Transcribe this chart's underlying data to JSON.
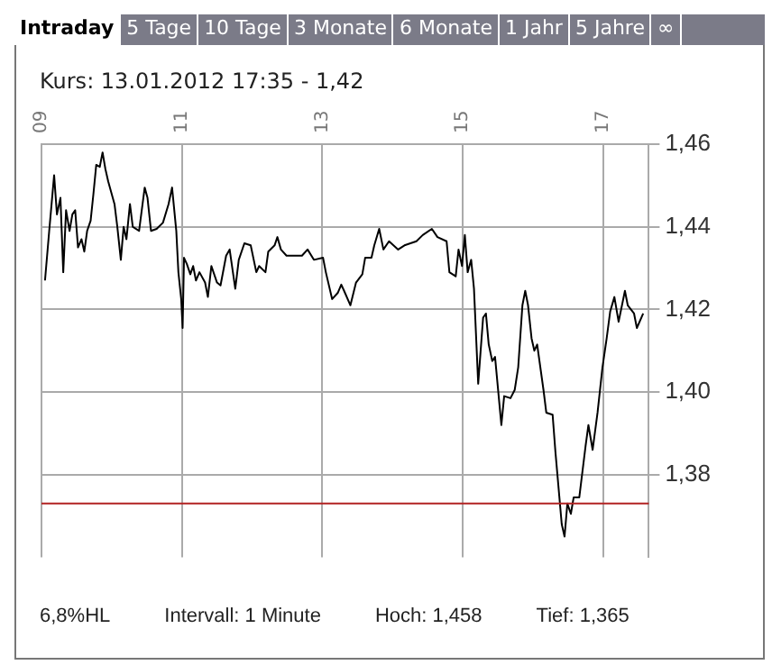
{
  "chart_data": {
    "type": "line",
    "title": "Kurs: 13.01.2012 17:35 - 1,42",
    "annotations": [
      "Intraday",
      "5 Tage",
      "10 Tage",
      "3 Monate",
      "6 Monate",
      "1 Jahr",
      "5 Jahre",
      "∞",
      "6,8%HL",
      "Intervall: 1 Minute",
      "Hoch: 1,458",
      "Tief: 1,365"
    ],
    "x": [
      9.05,
      9.11,
      9.18,
      9.22,
      9.27,
      9.31,
      9.35,
      9.4,
      9.44,
      9.48,
      9.52,
      9.57,
      9.61,
      9.65,
      9.7,
      9.74,
      9.78,
      9.83,
      9.87,
      9.91,
      9.95,
      10.04,
      10.08,
      10.13,
      10.17,
      10.21,
      10.26,
      10.3,
      10.39,
      10.47,
      10.51,
      10.56,
      10.64,
      10.73,
      10.81,
      10.86,
      10.92,
      10.95,
      10.99,
      11.01,
      11.03,
      11.07,
      11.12,
      11.16,
      11.2,
      11.25,
      11.33,
      11.37,
      11.42,
      11.5,
      11.55,
      11.63,
      11.68,
      11.76,
      11.81,
      11.89,
      11.98,
      12.06,
      12.1,
      12.19,
      12.23,
      12.32,
      12.36,
      12.41,
      12.49,
      12.58,
      12.71,
      12.79,
      12.88,
      13.01,
      13.05,
      13.14,
      13.22,
      13.27,
      13.31,
      13.4,
      13.48,
      13.57,
      13.61,
      13.7,
      13.74,
      13.81,
      13.87,
      13.95,
      14.08,
      14.17,
      14.34,
      14.43,
      14.56,
      14.64,
      14.77,
      14.81,
      14.9,
      14.94,
      14.99,
      15.03,
      15.07,
      15.12,
      15.16,
      15.22,
      15.29,
      15.33,
      15.37,
      15.42,
      15.46,
      15.55,
      15.59,
      15.68,
      15.74,
      15.79,
      15.85,
      15.89,
      15.93,
      15.98,
      16.02,
      16.06,
      16.15,
      16.19,
      16.28,
      16.32,
      16.41,
      16.45,
      16.49,
      16.54,
      16.58,
      16.66,
      16.75,
      16.79,
      16.85,
      16.92,
      16.99,
      17.05,
      17.1,
      17.16,
      17.22,
      17.31,
      17.35,
      17.44,
      17.48,
      17.57
    ],
    "series": [
      {
        "color": "#000000",
        "values": [
          1.427,
          1.439,
          1.4525,
          1.443,
          1.447,
          1.429,
          1.444,
          1.439,
          1.443,
          1.444,
          1.435,
          1.437,
          1.434,
          1.439,
          1.4415,
          1.448,
          1.455,
          1.4545,
          1.458,
          1.454,
          1.451,
          1.4455,
          1.44,
          1.432,
          1.44,
          1.437,
          1.4455,
          1.44,
          1.439,
          1.4495,
          1.447,
          1.439,
          1.4395,
          1.441,
          1.4455,
          1.4495,
          1.439,
          1.429,
          1.4225,
          1.4155,
          1.4325,
          1.431,
          1.4285,
          1.4305,
          1.427,
          1.429,
          1.4265,
          1.423,
          1.4305,
          1.4265,
          1.4258,
          1.433,
          1.4345,
          1.425,
          1.432,
          1.436,
          1.4355,
          1.429,
          1.4305,
          1.429,
          1.434,
          1.4355,
          1.4375,
          1.4345,
          1.433,
          1.433,
          1.433,
          1.4345,
          1.432,
          1.4325,
          1.429,
          1.4225,
          1.424,
          1.426,
          1.4245,
          1.421,
          1.4265,
          1.4285,
          1.4325,
          1.4325,
          1.4355,
          1.4395,
          1.4345,
          1.4365,
          1.4345,
          1.4355,
          1.4365,
          1.438,
          1.4395,
          1.4375,
          1.4365,
          1.429,
          1.428,
          1.4345,
          1.4305,
          1.438,
          1.429,
          1.432,
          1.425,
          1.402,
          1.418,
          1.419,
          1.4115,
          1.4075,
          1.4085,
          1.392,
          1.399,
          1.3985,
          1.4005,
          1.406,
          1.421,
          1.4245,
          1.421,
          1.413,
          1.41,
          1.4115,
          1.4005,
          1.395,
          1.3945,
          1.3855,
          1.368,
          1.365,
          1.373,
          1.3705,
          1.3745,
          1.3745,
          1.387,
          1.392,
          1.386,
          1.395,
          1.406,
          1.413,
          1.4195,
          1.423,
          1.417,
          1.4245,
          1.421,
          1.419,
          1.4155,
          1.419
        ]
      }
    ],
    "xlim": [
      9,
      17.65
    ],
    "xticks": [
      {
        "value": 9,
        "label": "09"
      },
      11,
      13,
      15,
      17
    ],
    "ylim": [
      1.36,
      1.46
    ],
    "yticks": [
      {
        "value": 1.38,
        "label": "1,38"
      },
      {
        "value": 1.4,
        "label": "1,40"
      },
      {
        "value": 1.42,
        "label": "1,42"
      },
      {
        "value": 1.44,
        "label": "1,44"
      },
      {
        "value": 1.46,
        "label": "1,46"
      }
    ],
    "ref_lines": [
      {
        "axis": "y",
        "value": 1.373,
        "color": "#b22222"
      }
    ],
    "grid": true,
    "legend": false
  }
}
